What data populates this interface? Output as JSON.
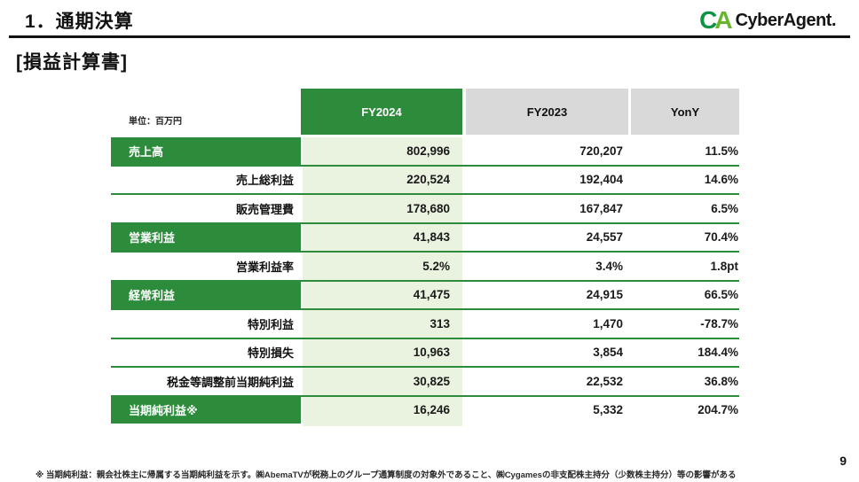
{
  "page": {
    "title": "1．通期決算",
    "subtitle": "[損益計算書]",
    "page_number": "9",
    "footnote": "※ 当期純利益：親会社株主に帰属する当期純利益を示す。㈱AbemaTVが税務上のグループ通算制度の対象外であること、㈱Cygamesの非支配株主持分（少数株主持分）等の影響がある"
  },
  "logo": {
    "mark_c": "C",
    "mark_a": "A",
    "text": "CyberAgent."
  },
  "colors": {
    "brand_green": "#2c8c3c",
    "light_green": "#eaf2e0",
    "header_gray": "#d9d9d9",
    "logo_c_green": "#0b9444",
    "logo_a_green": "#68b42e"
  },
  "table": {
    "unit_label": "単位：百万円",
    "columns": [
      "FY2024",
      "FY2023",
      "YonY"
    ],
    "rows": [
      {
        "label": "売上高",
        "highlight": true,
        "fy2024": "802,996",
        "fy2023": "720,207",
        "yony": "11.5%"
      },
      {
        "label": "売上総利益",
        "highlight": false,
        "fy2024": "220,524",
        "fy2023": "192,404",
        "yony": "14.6%"
      },
      {
        "label": "販売管理費",
        "highlight": false,
        "fy2024": "178,680",
        "fy2023": "167,847",
        "yony": "6.5%"
      },
      {
        "label": "営業利益",
        "highlight": true,
        "fy2024": "41,843",
        "fy2023": "24,557",
        "yony": "70.4%"
      },
      {
        "label": "営業利益率",
        "highlight": false,
        "fy2024": "5.2%",
        "fy2023": "3.4%",
        "yony": "1.8pt"
      },
      {
        "label": "経常利益",
        "highlight": true,
        "fy2024": "41,475",
        "fy2023": "24,915",
        "yony": "66.5%"
      },
      {
        "label": "特別利益",
        "highlight": false,
        "fy2024": "313",
        "fy2023": "1,470",
        "yony": "-78.7%"
      },
      {
        "label": "特別損失",
        "highlight": false,
        "fy2024": "10,963",
        "fy2023": "3,854",
        "yony": "184.4%"
      },
      {
        "label": "税金等調整前当期純利益",
        "highlight": false,
        "fy2024": "30,825",
        "fy2023": "22,532",
        "yony": "36.8%"
      },
      {
        "label": "当期純利益※",
        "highlight": true,
        "fy2024": "16,246",
        "fy2023": "5,332",
        "yony": "204.7%"
      }
    ]
  }
}
